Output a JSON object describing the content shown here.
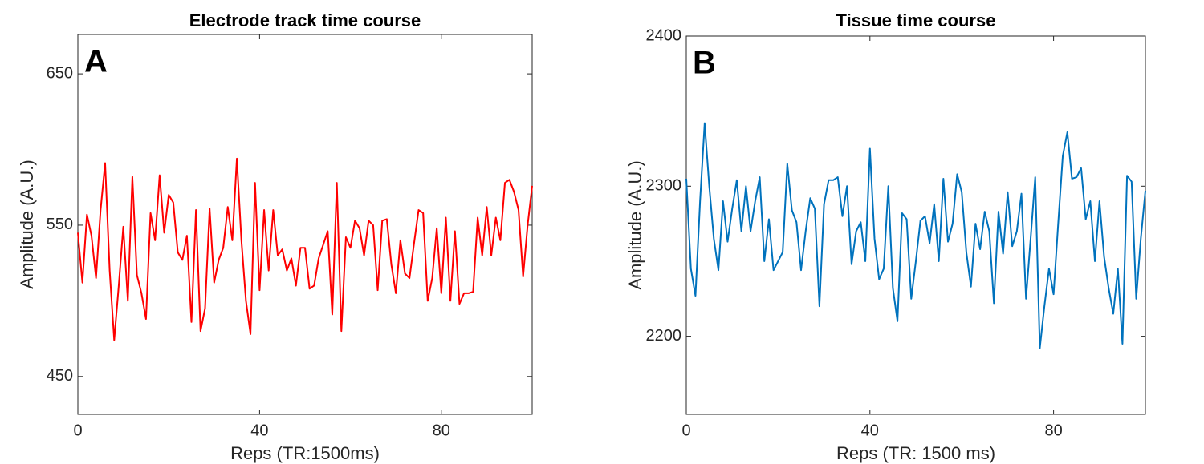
{
  "chart_data": [
    {
      "type": "line",
      "title": "Electrode track time course",
      "annotation": "A",
      "xlabel": "Reps (TR:1500ms)",
      "ylabel": "Amplitude (A.U.)",
      "color": "#ff0000",
      "xlim": [
        0,
        100
      ],
      "xticks": [
        0,
        40,
        80
      ],
      "ylim": [
        425,
        676
      ],
      "yticks": [
        450,
        550,
        650
      ],
      "x": [
        0,
        1,
        2,
        3,
        4,
        5,
        6,
        7,
        8,
        9,
        10,
        11,
        12,
        13,
        14,
        15,
        16,
        17,
        18,
        19,
        20,
        21,
        22,
        23,
        24,
        25,
        26,
        27,
        28,
        29,
        30,
        31,
        32,
        33,
        34,
        35,
        36,
        37,
        38,
        39,
        40,
        41,
        42,
        43,
        44,
        45,
        46,
        47,
        48,
        49,
        50,
        51,
        52,
        53,
        54,
        55,
        56,
        57,
        58,
        59,
        60,
        61,
        62,
        63,
        64,
        65,
        66,
        67,
        68,
        69,
        70,
        71,
        72,
        73,
        74,
        75,
        76,
        77,
        78,
        79,
        80,
        81,
        82,
        83,
        84,
        85,
        86,
        87,
        88,
        89,
        90,
        91,
        92,
        93,
        94,
        95,
        96,
        97,
        98,
        99,
        100
      ],
      "values": [
        545,
        512,
        557,
        543,
        515,
        560,
        591,
        520,
        474,
        510,
        549,
        500,
        582,
        517,
        505,
        488,
        558,
        540,
        583,
        545,
        570,
        565,
        532,
        527,
        543,
        486,
        560,
        480,
        495,
        561,
        512,
        527,
        535,
        562,
        540,
        594,
        540,
        500,
        478,
        578,
        507,
        560,
        520,
        560,
        530,
        534,
        520,
        528,
        510,
        535,
        535,
        508,
        510,
        528,
        537,
        546,
        491,
        578,
        480,
        542,
        535,
        553,
        548,
        530,
        553,
        550,
        507,
        553,
        554,
        524,
        505,
        540,
        518,
        515,
        538,
        560,
        558,
        500,
        515,
        548,
        505,
        555,
        500,
        546,
        498,
        505,
        505,
        506,
        555,
        530,
        562,
        530,
        555,
        540,
        578,
        580,
        572,
        560,
        516,
        550,
        576
      ]
    },
    {
      "type": "line",
      "title": "Tissue time course",
      "annotation": "B",
      "xlabel": "Reps (TR: 1500 ms)",
      "ylabel": "Amplitude (A.U.)",
      "color": "#0072bd",
      "xlim": [
        0,
        100
      ],
      "xticks": [
        0,
        40,
        80
      ],
      "ylim": [
        2148,
        2400
      ],
      "yticks": [
        2200,
        2300,
        2400
      ],
      "x": [
        0,
        1,
        2,
        3,
        4,
        5,
        6,
        7,
        8,
        9,
        10,
        11,
        12,
        13,
        14,
        15,
        16,
        17,
        18,
        19,
        20,
        21,
        22,
        23,
        24,
        25,
        26,
        27,
        28,
        29,
        30,
        31,
        32,
        33,
        34,
        35,
        36,
        37,
        38,
        39,
        40,
        41,
        42,
        43,
        44,
        45,
        46,
        47,
        48,
        49,
        50,
        51,
        52,
        53,
        54,
        55,
        56,
        57,
        58,
        59,
        60,
        61,
        62,
        63,
        64,
        65,
        66,
        67,
        68,
        69,
        70,
        71,
        72,
        73,
        74,
        75,
        76,
        77,
        78,
        79,
        80,
        81,
        82,
        83,
        84,
        85,
        86,
        87,
        88,
        89,
        90,
        91,
        92,
        93,
        94,
        95,
        96,
        97,
        98,
        99,
        100
      ],
      "values": [
        2305,
        2245,
        2227,
        2290,
        2342,
        2300,
        2265,
        2244,
        2290,
        2263,
        2285,
        2304,
        2270,
        2300,
        2270,
        2290,
        2306,
        2250,
        2278,
        2244,
        2250,
        2256,
        2315,
        2284,
        2276,
        2244,
        2270,
        2292,
        2285,
        2220,
        2288,
        2304,
        2304,
        2306,
        2280,
        2300,
        2248,
        2270,
        2276,
        2250,
        2325,
        2265,
        2238,
        2245,
        2300,
        2232,
        2210,
        2282,
        2278,
        2225,
        2250,
        2277,
        2280,
        2262,
        2288,
        2250,
        2305,
        2263,
        2275,
        2308,
        2296,
        2256,
        2233,
        2275,
        2258,
        2283,
        2270,
        2222,
        2283,
        2255,
        2296,
        2260,
        2270,
        2295,
        2225,
        2265,
        2306,
        2192,
        2220,
        2245,
        2228,
        2275,
        2320,
        2336,
        2305,
        2306,
        2312,
        2278,
        2290,
        2250,
        2290,
        2253,
        2232,
        2215,
        2245,
        2195,
        2307,
        2303,
        2225,
        2265,
        2297
      ]
    }
  ]
}
